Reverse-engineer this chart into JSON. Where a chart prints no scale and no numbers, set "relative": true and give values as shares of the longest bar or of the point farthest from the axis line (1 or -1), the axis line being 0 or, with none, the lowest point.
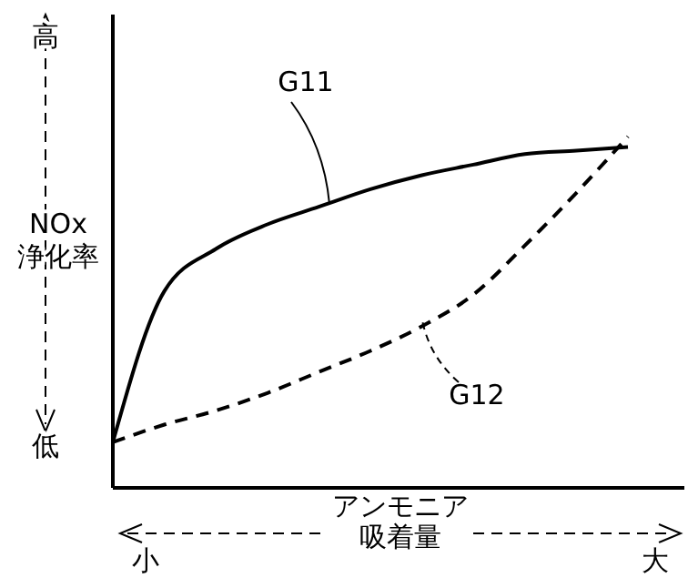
{
  "chart_data": {
    "type": "line",
    "relative": true,
    "ylabel": "NOx 浄化率",
    "xlabel": "アンモニア吸着量",
    "annotations": [
      "高",
      "低",
      "小",
      "大"
    ],
    "categories": [
      null,
      null,
      null,
      null,
      null,
      null,
      null,
      null,
      null,
      null,
      null
    ],
    "series": [
      {
        "name": "G11",
        "color": "#000000",
        "line_style": "solid",
        "values": [
          0.13,
          0.56,
          0.68,
          0.75,
          0.8,
          0.85,
          0.89,
          0.92,
          0.95,
          0.96,
          0.97
        ]
      },
      {
        "name": "G12",
        "color": "#000000",
        "line_style": "dashed",
        "values": [
          0.13,
          0.18,
          0.22,
          0.27,
          0.33,
          0.39,
          0.46,
          0.55,
          0.69,
          0.84,
          1
        ]
      }
    ]
  }
}
